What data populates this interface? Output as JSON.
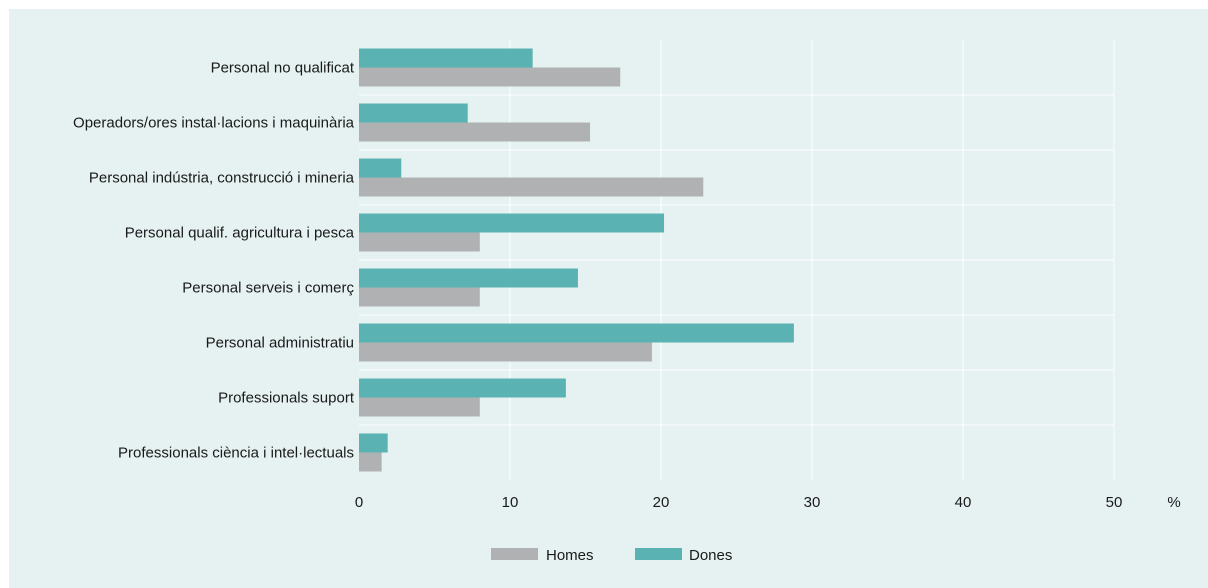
{
  "chart_data": {
    "type": "bar",
    "orientation": "horizontal",
    "categories": [
      "Personal no qualificat",
      "Operadors/ores instal·lacions i maquinària",
      "Personal indústria, construcció i mineria",
      "Personal qualif. agricultura i pesca",
      "Personal serveis i comerç",
      "Personal administratiu",
      "Professionals suport",
      "Professionals ciència i intel·lectuals"
    ],
    "series": [
      {
        "name": "Dones",
        "color": "#5ab3b2",
        "values": [
          11.5,
          7.2,
          2.8,
          20.2,
          14.5,
          28.8,
          13.7,
          1.9
        ]
      },
      {
        "name": "Homes",
        "color": "#b0b1b3",
        "values": [
          17.3,
          15.3,
          22.8,
          8.0,
          8.0,
          19.4,
          8.0,
          1.5
        ]
      }
    ],
    "xlim": [
      0,
      50
    ],
    "xticks": [
      "0",
      "10",
      "20",
      "30",
      "40",
      "50"
    ],
    "xunit": "%",
    "grid": true,
    "legend_position": "bottom"
  }
}
